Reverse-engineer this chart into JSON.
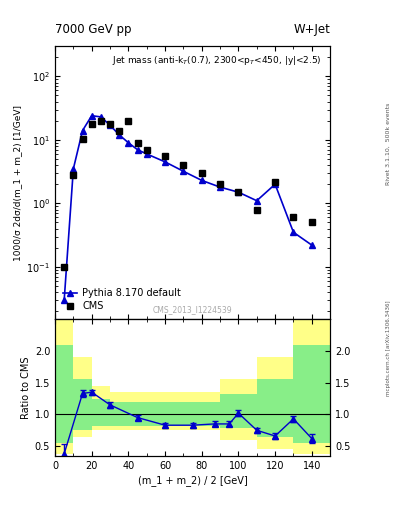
{
  "title_left": "7000 GeV pp",
  "title_right": "W+Jet",
  "annotation": "Jet mass (anti-k$_{T}$(0.7), 2300<p$_{T}$<450, |y|<2.5)",
  "watermark": "CMS_2013_I1224539",
  "rivet_label": "Rivet 3.1.10,  500k events",
  "mcplots_label": "mcplots.cern.ch [arXiv:1306.3436]",
  "xlabel": "(m_1 + m_2) / 2 [GeV]",
  "ylabel": "1000/σ 2dσ/d(m_1 + m_2) [1/GeV]",
  "ylabel_ratio": "Ratio to CMS",
  "xlim": [
    0,
    150
  ],
  "ylim_log": [
    0.015,
    300
  ],
  "ylim_ratio": [
    0.35,
    2.5
  ],
  "cms_x": [
    5,
    10,
    15,
    20,
    25,
    30,
    35,
    40,
    45,
    50,
    60,
    70,
    80,
    90,
    100,
    110,
    120,
    130,
    140
  ],
  "cms_y": [
    0.1,
    2.8,
    10.5,
    18,
    20,
    18,
    14,
    20,
    9,
    7,
    5.5,
    4,
    3,
    2,
    1.5,
    0.8,
    2.2,
    0.6,
    0.5
  ],
  "pythia_x": [
    5,
    10,
    15,
    20,
    25,
    30,
    35,
    40,
    45,
    50,
    60,
    70,
    80,
    90,
    100,
    110,
    120,
    130,
    140
  ],
  "pythia_y": [
    0.03,
    3.5,
    14,
    24,
    23,
    17,
    12,
    9,
    7,
    6,
    4.5,
    3.2,
    2.3,
    1.8,
    1.5,
    1.1,
    2.0,
    0.35,
    0.22
  ],
  "ratio_x": [
    5,
    15,
    20,
    30,
    45,
    60,
    75,
    87,
    95,
    100,
    110,
    120,
    130,
    140
  ],
  "ratio_y": [
    0.38,
    1.33,
    1.35,
    1.15,
    0.95,
    0.83,
    0.83,
    0.85,
    0.85,
    1.02,
    0.75,
    0.66,
    0.93,
    0.62
  ],
  "ratio_yerr": [
    0.15,
    0.05,
    0.04,
    0.05,
    0.04,
    0.04,
    0.04,
    0.04,
    0.04,
    0.05,
    0.04,
    0.04,
    0.05,
    0.07
  ],
  "bin_edges": [
    0,
    10,
    20,
    30,
    50,
    70,
    90,
    110,
    130,
    150
  ],
  "yellow_lo": [
    0.38,
    0.65,
    0.75,
    0.75,
    0.75,
    0.75,
    0.6,
    0.45,
    0.38
  ],
  "yellow_hi": [
    2.5,
    1.9,
    1.45,
    1.35,
    1.35,
    1.35,
    1.55,
    1.9,
    2.5
  ],
  "green_lo": [
    0.55,
    0.75,
    0.82,
    0.82,
    0.82,
    0.82,
    0.78,
    0.65,
    0.55
  ],
  "green_hi": [
    2.1,
    1.55,
    1.25,
    1.2,
    1.2,
    1.2,
    1.32,
    1.55,
    2.1
  ],
  "bg_color": "#ffffff",
  "cms_color": "#000000",
  "pythia_color": "#0000cc",
  "band_yellow": "#ffff88",
  "band_green": "#88ee88"
}
